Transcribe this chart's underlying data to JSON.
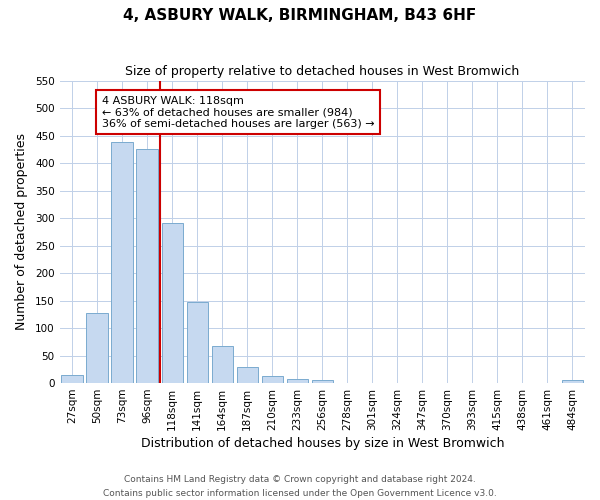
{
  "title": "4, ASBURY WALK, BIRMINGHAM, B43 6HF",
  "subtitle": "Size of property relative to detached houses in West Bromwich",
  "xlabel": "Distribution of detached houses by size in West Bromwich",
  "ylabel": "Number of detached properties",
  "bar_labels": [
    "27sqm",
    "50sqm",
    "73sqm",
    "96sqm",
    "118sqm",
    "141sqm",
    "164sqm",
    "187sqm",
    "210sqm",
    "233sqm",
    "256sqm",
    "278sqm",
    "301sqm",
    "324sqm",
    "347sqm",
    "370sqm",
    "393sqm",
    "415sqm",
    "438sqm",
    "461sqm",
    "484sqm"
  ],
  "bar_values": [
    15,
    128,
    438,
    425,
    291,
    147,
    68,
    29,
    13,
    7,
    5,
    0,
    0,
    0,
    0,
    0,
    0,
    0,
    0,
    0,
    5
  ],
  "bar_color": "#c6d9f0",
  "bar_edge_color": "#7aabcf",
  "vline_color": "#cc0000",
  "vline_x_index": 3.5,
  "annotation_text": "4 ASBURY WALK: 118sqm\n← 63% of detached houses are smaller (984)\n36% of semi-detached houses are larger (563) →",
  "annotation_box_color": "#ffffff",
  "annotation_box_edge_color": "#cc0000",
  "ylim": [
    0,
    550
  ],
  "yticks": [
    0,
    50,
    100,
    150,
    200,
    250,
    300,
    350,
    400,
    450,
    500,
    550
  ],
  "footer_line1": "Contains HM Land Registry data © Crown copyright and database right 2024.",
  "footer_line2": "Contains public sector information licensed under the Open Government Licence v3.0.",
  "bg_color": "#ffffff",
  "grid_color": "#c0d0e8",
  "title_fontsize": 11,
  "subtitle_fontsize": 9,
  "axis_label_fontsize": 9,
  "tick_fontsize": 7.5,
  "footer_fontsize": 6.5,
  "ann_fontsize": 8
}
